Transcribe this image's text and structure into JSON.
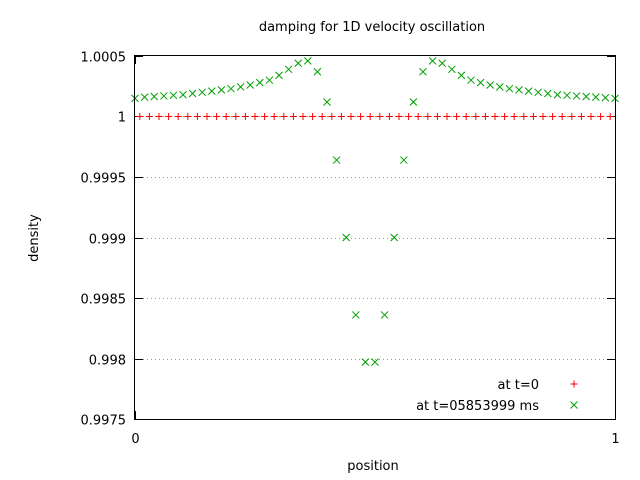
{
  "chart_data": {
    "type": "scatter",
    "title": "damping for 1D velocity oscillation",
    "xlabel": "position",
    "ylabel": "density",
    "xlim": [
      0,
      1
    ],
    "ylim": [
      0.9975,
      1.0005
    ],
    "xticks": [
      0,
      1
    ],
    "xtick_labels": [
      "0",
      "1"
    ],
    "yticks": [
      0.9975,
      0.998,
      0.9985,
      0.999,
      0.9995,
      1.0,
      1.0005
    ],
    "ytick_labels": [
      "0.9975",
      "0.998",
      "0.9985",
      "0.999",
      "0.9995",
      "1",
      "1.0005"
    ],
    "grid": "horizontal",
    "legend_position": "bottom-right",
    "series": [
      {
        "name": "at t=0",
        "marker": "plus",
        "color": "#ff0000",
        "x": [
          0.01,
          0.03,
          0.05,
          0.07,
          0.09,
          0.11,
          0.13,
          0.15,
          0.17,
          0.19,
          0.21,
          0.23,
          0.25,
          0.27,
          0.29,
          0.31,
          0.33,
          0.35,
          0.37,
          0.39,
          0.41,
          0.43,
          0.45,
          0.47,
          0.49,
          0.51,
          0.53,
          0.55,
          0.57,
          0.59,
          0.61,
          0.63,
          0.65,
          0.67,
          0.69,
          0.71,
          0.73,
          0.75,
          0.77,
          0.79,
          0.81,
          0.83,
          0.85,
          0.87,
          0.89,
          0.91,
          0.93,
          0.95,
          0.97,
          0.99
        ],
        "y": [
          1.0,
          1.0,
          1.0,
          1.0,
          1.0,
          1.0,
          1.0,
          1.0,
          1.0,
          1.0,
          1.0,
          1.0,
          1.0,
          1.0,
          1.0,
          1.0,
          1.0,
          1.0,
          1.0,
          1.0,
          1.0,
          1.0,
          1.0,
          1.0,
          1.0,
          1.0,
          1.0,
          1.0,
          1.0,
          1.0,
          1.0,
          1.0,
          1.0,
          1.0,
          1.0,
          1.0,
          1.0,
          1.0,
          1.0,
          1.0,
          1.0,
          1.0,
          1.0,
          1.0,
          1.0,
          1.0,
          1.0,
          1.0,
          1.0,
          1.0
        ]
      },
      {
        "name": "at t=05853999 ms",
        "marker": "cross",
        "color": "#00a000",
        "x": [
          0.0,
          0.02,
          0.04,
          0.06,
          0.08,
          0.1,
          0.12,
          0.14,
          0.16,
          0.18,
          0.2,
          0.22,
          0.24,
          0.26,
          0.28,
          0.3,
          0.32,
          0.34,
          0.36,
          0.38,
          0.4,
          0.42,
          0.44,
          0.46,
          0.48,
          0.5,
          0.52,
          0.54,
          0.56,
          0.58,
          0.6,
          0.62,
          0.64,
          0.66,
          0.68,
          0.7,
          0.72,
          0.74,
          0.76,
          0.78,
          0.8,
          0.82,
          0.84,
          0.86,
          0.88,
          0.9,
          0.92,
          0.94,
          0.96,
          0.98,
          1.0
        ],
        "y": [
          1.00015,
          1.00016,
          1.000165,
          1.00017,
          1.000175,
          1.00018,
          1.00019,
          1.0002,
          1.00021,
          1.00022,
          1.00023,
          1.000245,
          1.00026,
          1.00028,
          1.0003,
          1.00034,
          1.00039,
          1.00044,
          1.00046,
          1.00037,
          1.00012,
          0.99964,
          0.999,
          0.99836,
          0.99797,
          0.99797,
          0.99836,
          0.999,
          0.99964,
          1.00012,
          1.00037,
          1.00046,
          1.00044,
          1.00039,
          1.00034,
          1.0003,
          1.00028,
          1.00026,
          1.000245,
          1.00023,
          1.00022,
          1.00021,
          1.0002,
          1.00019,
          1.00018,
          1.000175,
          1.00017,
          1.000165,
          1.00016,
          1.000155,
          1.00015
        ]
      }
    ]
  }
}
